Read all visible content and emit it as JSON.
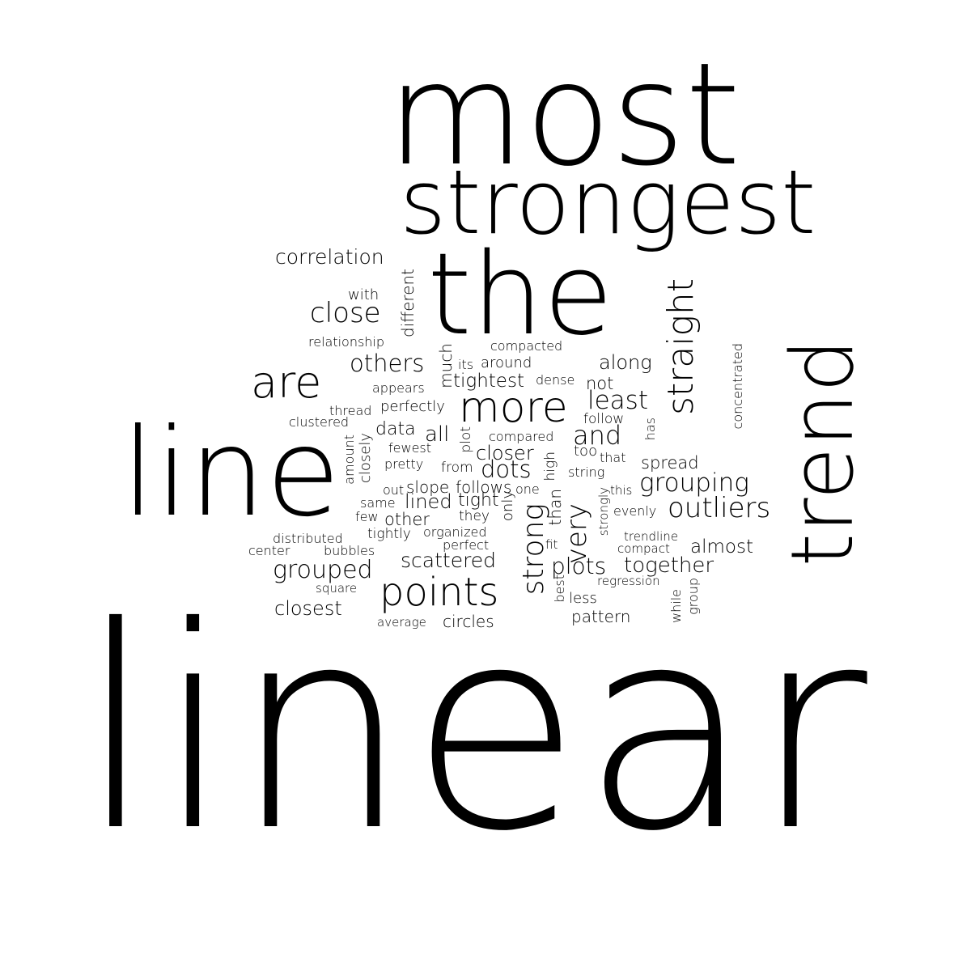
{
  "text_color": "#000000",
  "background_color": "#ffffff",
  "words": [
    "linear",
    "most",
    "strongest",
    "the",
    "line",
    "trend",
    "points",
    "more",
    "are",
    "straight",
    "close",
    "correlation",
    "others",
    "least",
    "and",
    "grouping",
    "outliers",
    "strong",
    "very",
    "dots",
    "closer",
    "grouped",
    "scattered",
    "together",
    "plots",
    "closest",
    "along",
    "spread",
    "almost",
    "tightest",
    "data",
    "all",
    "lined",
    "tight",
    "follows",
    "slope",
    "other",
    "circles",
    "pattern",
    "not",
    "perfectly",
    "compacted",
    "around",
    "with",
    "relationship",
    "different",
    "much",
    "its",
    "dense",
    "appears",
    "thread",
    "clustered",
    "follow",
    "compared",
    "fewest",
    "pretty",
    "from",
    "too",
    "that",
    "string",
    "this",
    "evenly",
    "same",
    "out",
    "one",
    "few",
    "they",
    "organized",
    "tightly",
    "distributed",
    "center",
    "bubbles",
    "perfect",
    "fit",
    "trendline",
    "compact",
    "regression",
    "square",
    "average",
    "less",
    "best",
    "concentrated",
    "has",
    "amount",
    "closely",
    "plot",
    "high",
    "than",
    "only",
    "strongly",
    "while",
    "group"
  ]
}
